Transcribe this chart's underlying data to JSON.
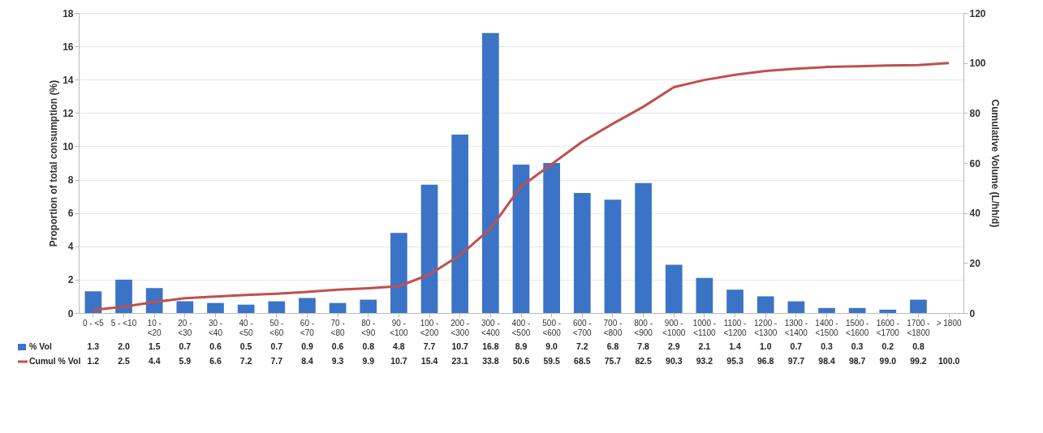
{
  "chart_data": {
    "type": "bar",
    "ylabel": "Proportion of total consumption (%)",
    "y2label": "Cumulative Volume (L/hh/d)",
    "categories": [
      "0 - <5",
      "5 - <10",
      "10 - <20",
      "20 - <30",
      "30 - <40",
      "40 - <50",
      "50 - <60",
      "60 - <70",
      "70 - <80",
      "80 - <90",
      "90 - <100",
      "100 - <200",
      "200 - <300",
      "300 - <400",
      "400 - <500",
      "500 - <600",
      "600 - <700",
      "700 - <800",
      "800 - <900",
      "900 - <1000",
      "1000 - <1100",
      "1100 - <1200",
      "1200 - <1300",
      "1300 - <1400",
      "1400 - <1500",
      "1500 - <1600",
      "1600 - <1700",
      "1700 - <1800",
      "> 1800"
    ],
    "series": [
      {
        "name": "% Vol",
        "color": "#3b74c6",
        "values": [
          1.3,
          2.0,
          1.5,
          0.7,
          0.6,
          0.5,
          0.7,
          0.9,
          0.6,
          0.8,
          4.8,
          7.7,
          10.7,
          16.8,
          8.9,
          9.0,
          7.2,
          6.8,
          7.8,
          2.9,
          2.1,
          1.4,
          1.0,
          0.7,
          0.3,
          0.3,
          0.2,
          0.8,
          null
        ],
        "value_labels": [
          "1.3",
          "2.0",
          "1.5",
          "0.7",
          "0.6",
          "0.5",
          "0.7",
          "0.9",
          "0.6",
          "0.8",
          "4.8",
          "7.7",
          "10.7",
          "16.8",
          "8.9",
          "9.0",
          "7.2",
          "6.8",
          "7.8",
          "2.9",
          "2.1",
          "1.4",
          "1.0",
          "0.7",
          "0.3",
          "0.3",
          "0.2",
          "0.8",
          null
        ]
      },
      {
        "name": "Cumul % Vol",
        "type": "line",
        "axis": "y2",
        "color": "#c0504d",
        "values": [
          1.2,
          2.5,
          4.4,
          5.9,
          6.6,
          7.2,
          7.7,
          8.4,
          9.3,
          9.9,
          10.7,
          15.4,
          23.1,
          33.8,
          50.6,
          59.5,
          68.5,
          75.7,
          82.5,
          90.3,
          93.2,
          95.3,
          96.8,
          97.7,
          98.4,
          98.7,
          99.0,
          99.2,
          100.0
        ],
        "value_labels": [
          "1.2",
          "2.5",
          "4.4",
          "5.9",
          "6.6",
          "7.2",
          "7.7",
          "8.4",
          "9.3",
          "9.9",
          "10.7",
          "15.4",
          "23.1",
          "33.8",
          "50.6",
          "59.5",
          "68.5",
          "75.7",
          "82.5",
          "90.3",
          "93.2",
          "95.3",
          "96.8",
          "97.7",
          "98.4",
          "98.7",
          "99.0",
          "99.2",
          "100.0"
        ]
      }
    ],
    "ylim": [
      0,
      18
    ],
    "yticks": [
      0,
      2,
      4,
      6,
      8,
      10,
      12,
      14,
      16,
      18
    ],
    "y2lim": [
      0,
      120
    ],
    "y2ticks": [
      0,
      20,
      40,
      60,
      80,
      100,
      120
    ],
    "grid": "y",
    "legend": "bottom left",
    "line_style": "solid",
    "marker": "none"
  }
}
